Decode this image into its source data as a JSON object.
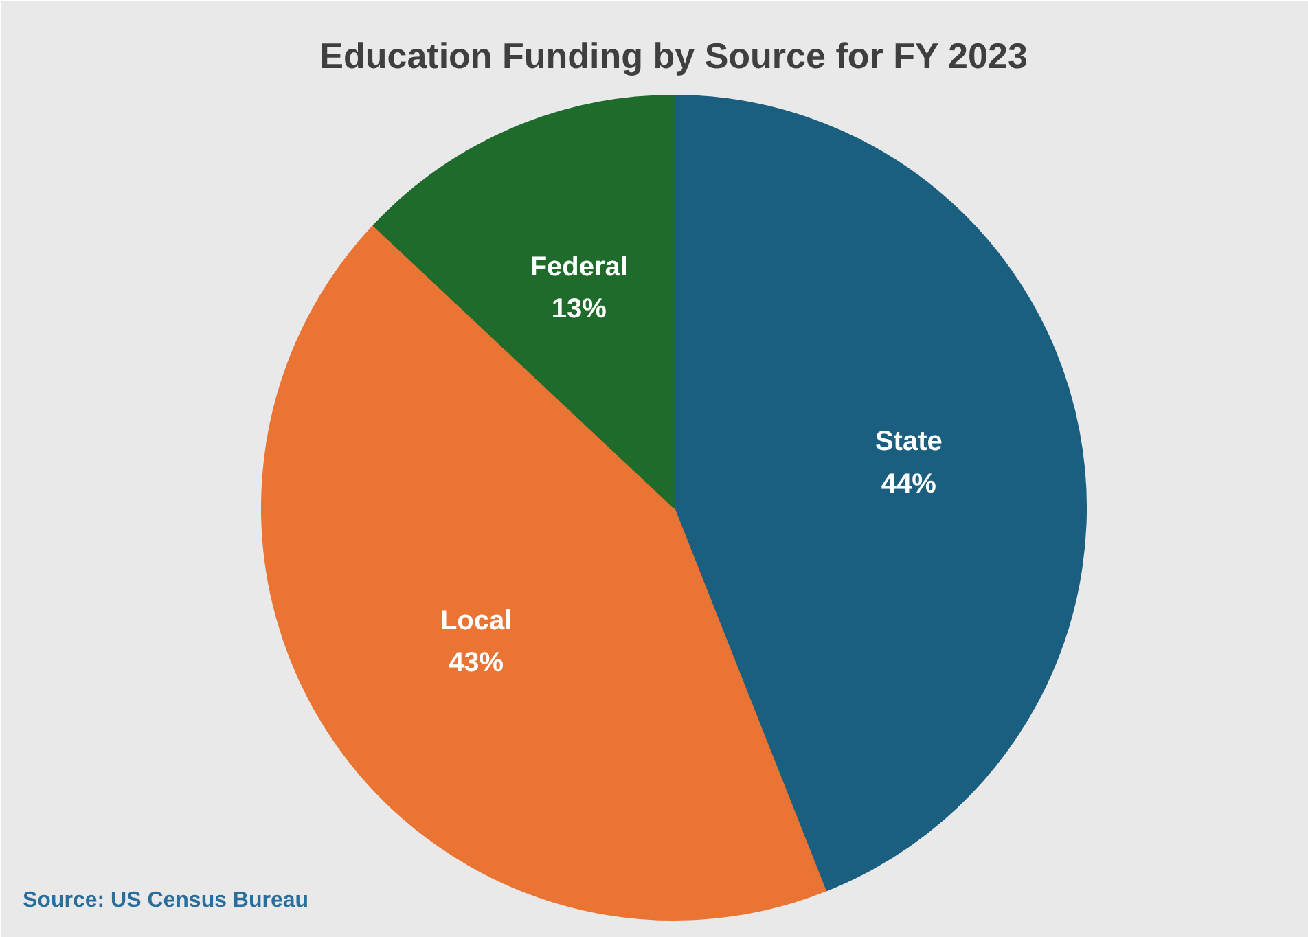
{
  "chart_data": {
    "type": "pie",
    "title": "Education Funding by Source for FY 2023",
    "categories": [
      "State",
      "Local",
      "Federal"
    ],
    "values": [
      44,
      43,
      13
    ],
    "value_labels": [
      "44%",
      "43%",
      "13%"
    ],
    "colors": [
      "#1a5f80",
      "#ea7434",
      "#1e6b2b"
    ],
    "annotations": [
      "Source:  US Census Bureau"
    ]
  }
}
